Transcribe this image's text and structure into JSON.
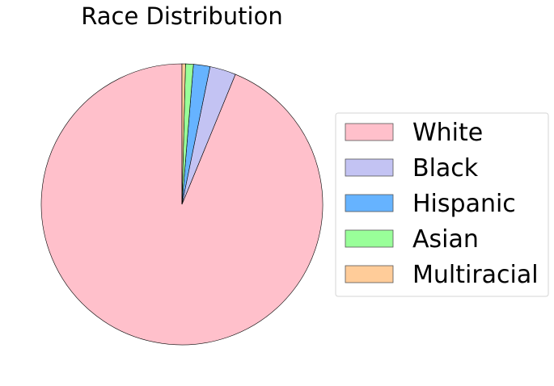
{
  "chart_data": {
    "type": "pie",
    "title": "Race Distribution",
    "start_angle_deg": 90,
    "direction": "counterclockwise",
    "legend_position": "right",
    "slices": [
      {
        "label": "White",
        "value": 93.8,
        "color": "#ffc0cb"
      },
      {
        "label": "Black",
        "value": 3.0,
        "color": "#c3c3f3"
      },
      {
        "label": "Hispanic",
        "value": 1.9,
        "color": "#66b3ff"
      },
      {
        "label": "Asian",
        "value": 0.9,
        "color": "#99ff99"
      },
      {
        "label": "Multiracial",
        "value": 0.4,
        "color": "#ffcc99"
      }
    ]
  }
}
